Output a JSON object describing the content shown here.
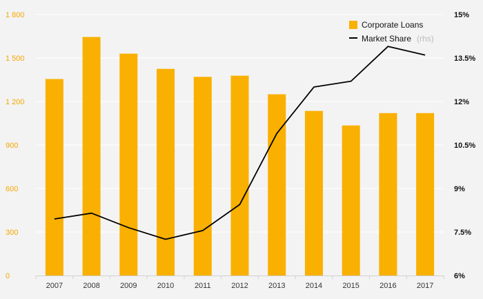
{
  "chart_data": {
    "type": "bar",
    "categories": [
      "2007",
      "2008",
      "2009",
      "2010",
      "2011",
      "2012",
      "2013",
      "2014",
      "2015",
      "2016",
      "2017"
    ],
    "series": [
      {
        "name": "Corporate Loans",
        "type": "bar",
        "axis": "left",
        "color": "#f9b000",
        "values": [
          1355,
          1645,
          1530,
          1425,
          1370,
          1378,
          1250,
          1135,
          1035,
          1120,
          1120
        ]
      },
      {
        "name": "Market Share",
        "legend_suffix": "(rhs)",
        "type": "line",
        "axis": "right",
        "color": "#000000",
        "values": [
          7.95,
          8.15,
          7.65,
          7.25,
          7.55,
          8.45,
          10.9,
          12.5,
          12.7,
          13.9,
          13.6
        ]
      }
    ],
    "y_left": {
      "ylim": [
        0,
        1800
      ],
      "ticks": [
        0,
        300,
        600,
        900,
        1200,
        1500,
        1800
      ],
      "tick_labels": [
        "0",
        "300",
        "600",
        "900",
        "1 200",
        "1 500",
        "1 800"
      ],
      "color": "#f5a800"
    },
    "y_right": {
      "ylim": [
        6,
        15
      ],
      "ticks": [
        6,
        7.5,
        9,
        10.5,
        12,
        13.5,
        15
      ],
      "tick_labels": [
        "6%",
        "7.5%",
        "9%",
        "10.5%",
        "12%",
        "13.5%",
        "15%"
      ],
      "color": "#111111"
    },
    "title": "",
    "xlabel": "",
    "ylabel": "",
    "grid": true,
    "legend_position": "top-right"
  }
}
